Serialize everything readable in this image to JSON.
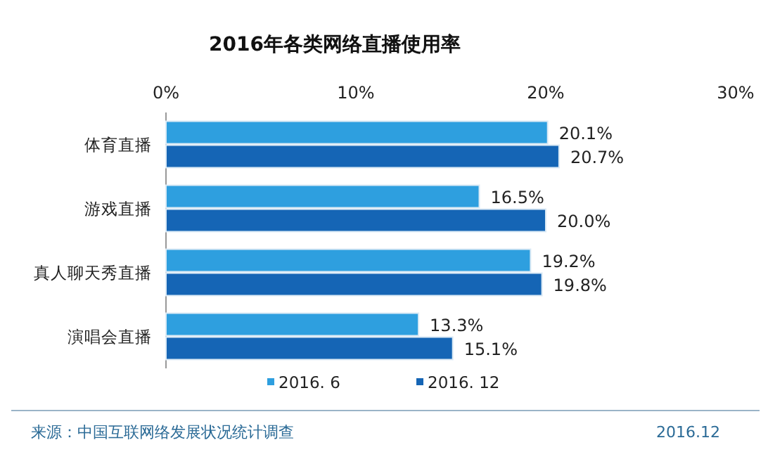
{
  "chart_data": {
    "type": "bar",
    "orientation": "horizontal",
    "title": "2016年各类网络直播使用率",
    "categories": [
      "体育直播",
      "游戏直播",
      "真人聊天秀直播",
      "演唱会直播"
    ],
    "series": [
      {
        "name": "2016. 6",
        "color": "#2e9fdf",
        "values": [
          20.1,
          16.5,
          19.2,
          13.3
        ],
        "value_labels": [
          "20.1%",
          "16.5%",
          "19.2%",
          "13.3%"
        ]
      },
      {
        "name": "2016. 12",
        "color": "#1565b5",
        "values": [
          20.7,
          20.0,
          19.8,
          15.1
        ],
        "value_labels": [
          "20.7%",
          "20.0%",
          "19.8%",
          "15.1%"
        ]
      }
    ],
    "xlim": [
      0,
      30
    ],
    "xticks": [
      {
        "value": 0,
        "label": "0%"
      },
      {
        "value": 10,
        "label": "10%"
      },
      {
        "value": 20,
        "label": "20%"
      },
      {
        "value": 30,
        "label": "30%"
      }
    ],
    "legend": "bottom",
    "grid": false,
    "annotations": [
      "来源：中国互联网络发展状况统计调查",
      "2016.12"
    ]
  }
}
